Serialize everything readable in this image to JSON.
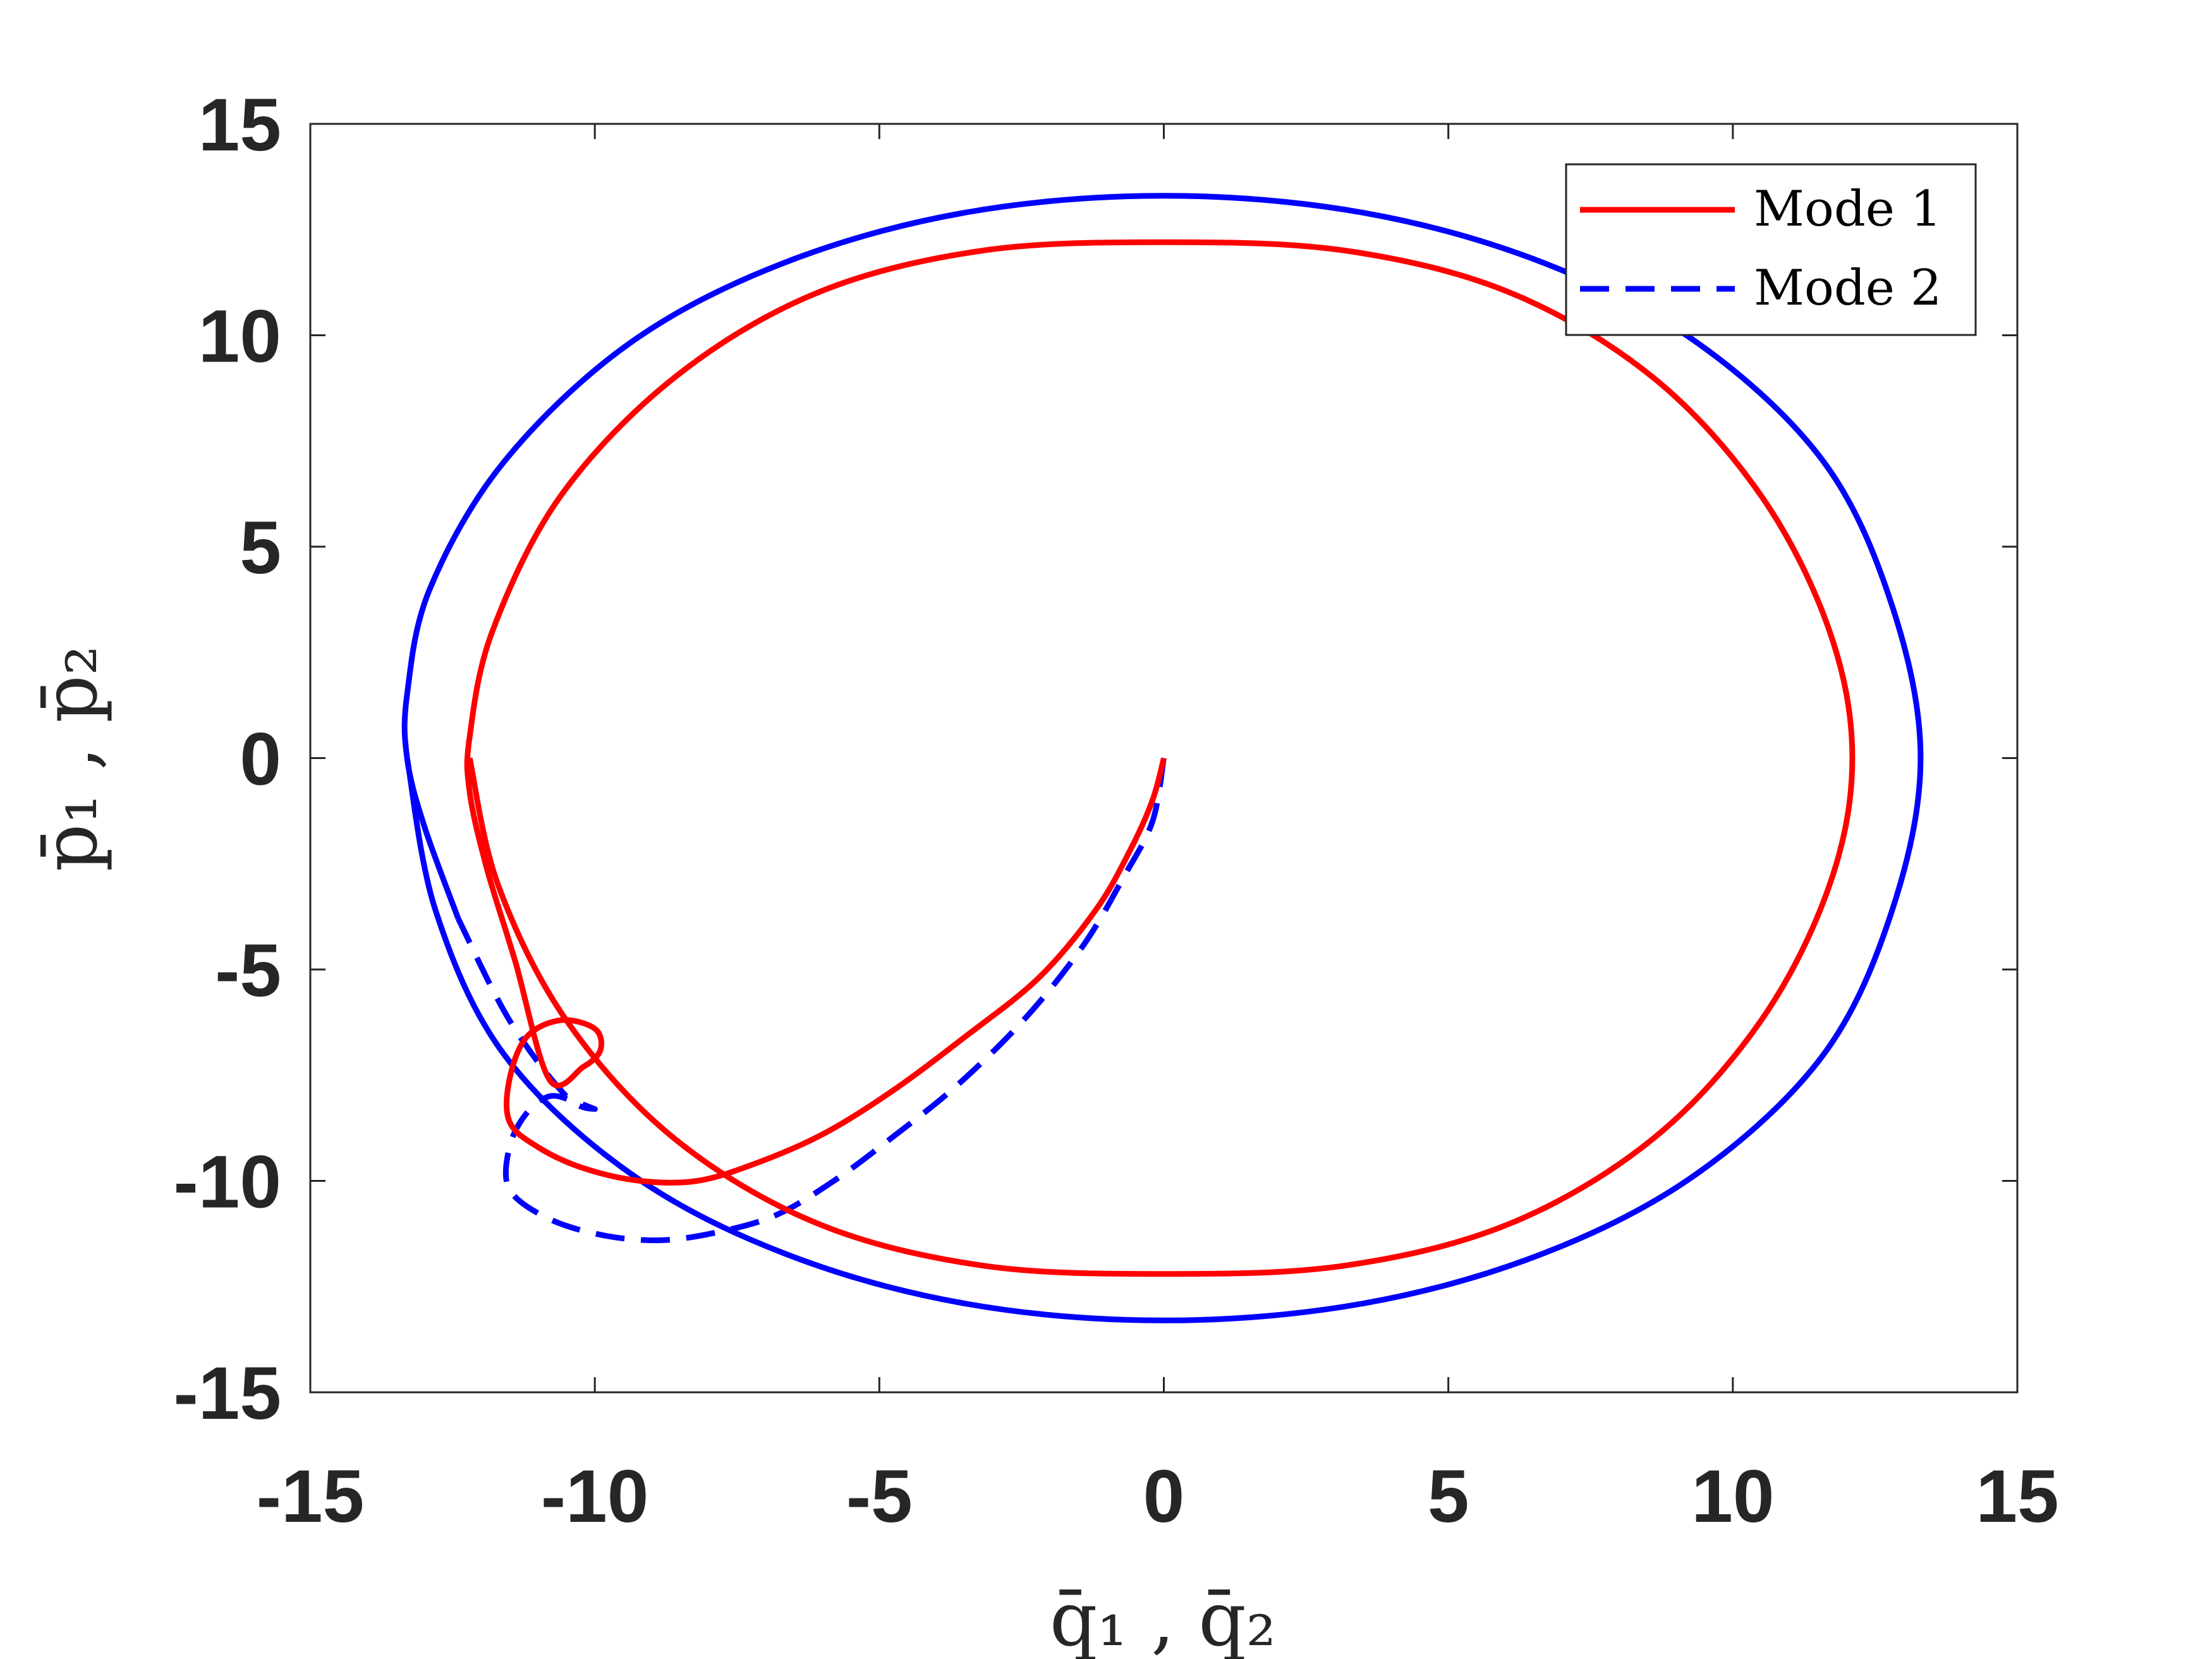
{
  "chart_data": {
    "type": "line",
    "xlabel": "q̄₁ , q̄₂",
    "ylabel": "p̄₁ , p̄₂",
    "xlim": [
      -15,
      15
    ],
    "ylim": [
      -15,
      15
    ],
    "xticks": [
      "-15",
      "-10",
      "-5",
      "0",
      "5",
      "10",
      "15"
    ],
    "yticks": [
      "15",
      "10",
      "5",
      "0",
      "-5",
      "-10",
      "-15"
    ],
    "legend": {
      "position": "top-right"
    },
    "grid": false,
    "series": [
      {
        "name": "Mode 1",
        "color": "#ff0000",
        "dash": "solid",
        "x": [
          0.0,
          -0.2,
          -0.6,
          -1.2,
          -2.2,
          -3.5,
          -4.8,
          -6.0,
          -7.2,
          -8.2,
          -9.2,
          -10.2,
          -11.0,
          -11.5,
          -11.5,
          -11.2,
          -10.6,
          -10.0,
          -9.9,
          -10.2,
          -10.8,
          -11.4,
          -11.9,
          -12.2,
          -12.2,
          -11.8,
          -10.6,
          -8.6,
          -6.1,
          -3.2,
          0.0,
          3.2,
          6.1,
          8.6,
          10.5,
          11.7,
          12.1,
          11.7,
          10.5,
          8.6,
          6.1,
          3.2,
          0.0,
          -3.2,
          -6.1,
          -8.6,
          -10.5,
          -11.7,
          -12.2
        ],
        "y": [
          0.0,
          -1.0,
          -2.2,
          -3.6,
          -5.2,
          -6.6,
          -7.9,
          -8.9,
          -9.6,
          -10.0,
          -10.0,
          -9.7,
          -9.2,
          -8.6,
          -7.6,
          -6.6,
          -6.2,
          -6.4,
          -6.9,
          -7.3,
          -7.6,
          -4.8,
          -2.6,
          -0.8,
          0.5,
          3.0,
          6.2,
          9.0,
          11.0,
          12.0,
          12.2,
          12.0,
          11.0,
          9.0,
          6.2,
          3.0,
          0.0,
          -3.0,
          -6.2,
          -9.0,
          -11.0,
          -12.0,
          -12.2,
          -12.0,
          -11.0,
          -9.0,
          -6.2,
          -3.0,
          0.0
        ]
      },
      {
        "name": "Mode 2",
        "color": "#0000ff",
        "dash": "dashed",
        "x": [
          0.0,
          -0.2,
          -0.7,
          -1.4,
          -2.4,
          -3.6,
          -4.8,
          -5.8,
          -6.8,
          -7.8,
          -8.8,
          -9.8,
          -10.8,
          -11.5,
          -11.5,
          -11.2,
          -10.8,
          -10.4,
          -10.0,
          -10.5,
          -11.5,
          -12.4,
          -13.0,
          -13.3,
          -13.3,
          -12.9,
          -11.6,
          -9.4,
          -6.7,
          -3.5,
          0.0,
          3.5,
          6.7,
          9.4,
          11.6,
          12.8,
          13.3,
          12.8,
          11.6,
          9.4,
          6.7,
          3.5,
          0.0,
          -3.5,
          -6.7,
          -9.4,
          -11.6,
          -12.8,
          -13.3
        ],
        "y": [
          0.0,
          -1.5,
          -2.8,
          -4.4,
          -6.1,
          -7.7,
          -9.0,
          -10.0,
          -10.8,
          -11.2,
          -11.4,
          -11.3,
          -10.9,
          -10.2,
          -9.2,
          -8.4,
          -8.0,
          -8.1,
          -8.3,
          -8.0,
          -6.2,
          -3.8,
          -1.6,
          0.0,
          1.5,
          4.0,
          7.0,
          9.8,
          11.7,
          12.9,
          13.3,
          12.9,
          11.7,
          9.8,
          7.0,
          3.6,
          0.0,
          -3.6,
          -7.0,
          -9.8,
          -11.7,
          -12.9,
          -13.3,
          -12.9,
          -11.7,
          -9.8,
          -7.0,
          -3.6,
          0.0
        ]
      }
    ]
  }
}
